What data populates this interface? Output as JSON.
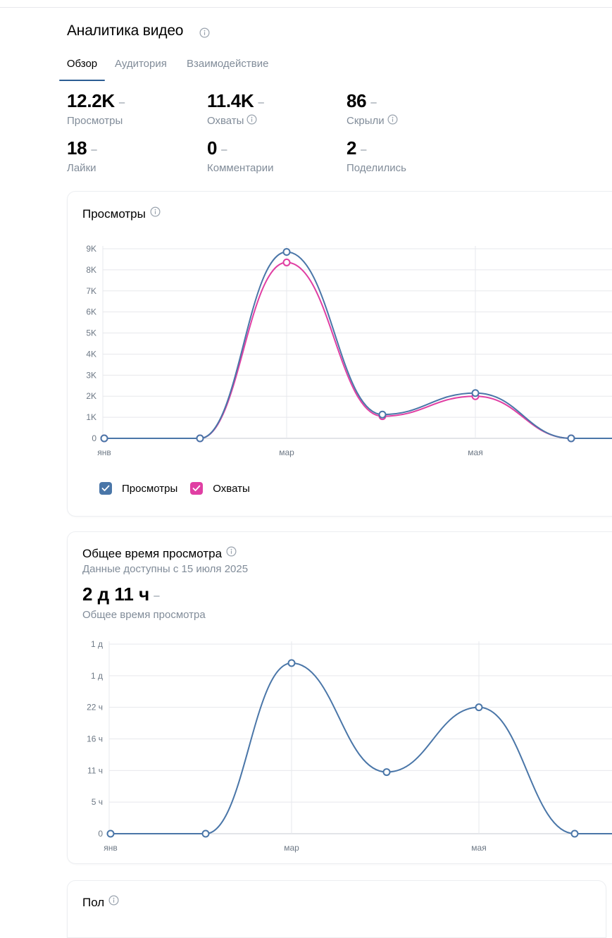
{
  "page": {
    "title": "Аналитика видео"
  },
  "tabs": [
    {
      "label": "Обзор",
      "active": true
    },
    {
      "label": "Аудитория",
      "active": false
    },
    {
      "label": "Взаимодействие",
      "active": false
    }
  ],
  "stats": [
    {
      "value": "12.2K",
      "dash": "–",
      "label": "Просмотры",
      "has_info": false
    },
    {
      "value": "11.4K",
      "dash": "–",
      "label": "Охваты",
      "has_info": true
    },
    {
      "value": "86",
      "dash": "–",
      "label": "Скрыли",
      "has_info": true
    },
    {
      "value": "18",
      "dash": "–",
      "label": "Лайки",
      "has_info": false
    },
    {
      "value": "0",
      "dash": "–",
      "label": "Комментарии",
      "has_info": false
    },
    {
      "value": "2",
      "dash": "–",
      "label": "Поделились",
      "has_info": false
    }
  ],
  "views_card": {
    "title": "Просмотры",
    "legend": [
      {
        "label": "Просмотры",
        "color": "#4a76a8",
        "checked": true
      },
      {
        "label": "Охваты",
        "color": "#e03fa3",
        "checked": true
      }
    ]
  },
  "watch_card": {
    "title": "Общее время просмотра",
    "subtitle": "Данные доступны с 15 июля 2025",
    "value": "2 д 11 ч",
    "dash": "–",
    "value_label": "Общее время просмотра"
  },
  "gender_card": {
    "title": "Пол"
  },
  "chart_data": [
    {
      "type": "line",
      "title": "Просмотры",
      "x_tick_labels": [
        "янв",
        "мар",
        "мая"
      ],
      "y_tick_labels": [
        "0",
        "1K",
        "2K",
        "3K",
        "4K",
        "5K",
        "6K",
        "7K",
        "8K",
        "9K"
      ],
      "ylim": [
        0,
        9000
      ],
      "grid": true,
      "legend_position": "bottom-left",
      "series": [
        {
          "name": "Просмотры",
          "color": "#4a76a8",
          "values": [
            0,
            0,
            8850,
            1130,
            2150,
            0,
            0
          ]
        },
        {
          "name": "Охваты",
          "color": "#e03fa3",
          "values": [
            0,
            0,
            8350,
            1050,
            2000,
            0,
            0
          ]
        }
      ]
    },
    {
      "type": "line",
      "title": "Общее время просмотра",
      "x_tick_labels": [
        "янв",
        "мар",
        "мая"
      ],
      "y_tick_labels": [
        "0",
        "5 ч",
        "11 ч",
        "16 ч",
        "22 ч",
        "1 д",
        "1 д"
      ],
      "ylim": [
        0,
        6
      ],
      "grid": true,
      "series": [
        {
          "name": "",
          "color": "#4a76a8",
          "values": [
            0,
            0,
            5.4,
            1.95,
            4.0,
            0,
            0
          ]
        }
      ]
    }
  ]
}
